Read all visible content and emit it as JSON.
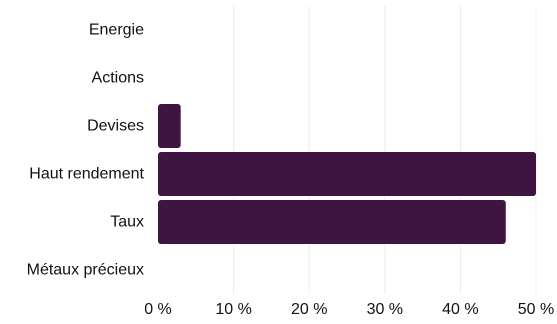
{
  "chart_data": {
    "type": "bar",
    "orientation": "horizontal",
    "categories": [
      "Energie",
      "Actions",
      "Devises",
      "Haut rendement",
      "Taux",
      "Métaux précieux"
    ],
    "values": [
      0,
      0,
      3,
      50,
      46,
      0
    ],
    "x_ticks": [
      "0 %",
      "10 %",
      "20 %",
      "30 %",
      "40 %",
      "50 %"
    ],
    "xlim": [
      0,
      50
    ],
    "grid": true,
    "bar_color": "#3e1441",
    "title": "",
    "xlabel": "",
    "ylabel": ""
  }
}
